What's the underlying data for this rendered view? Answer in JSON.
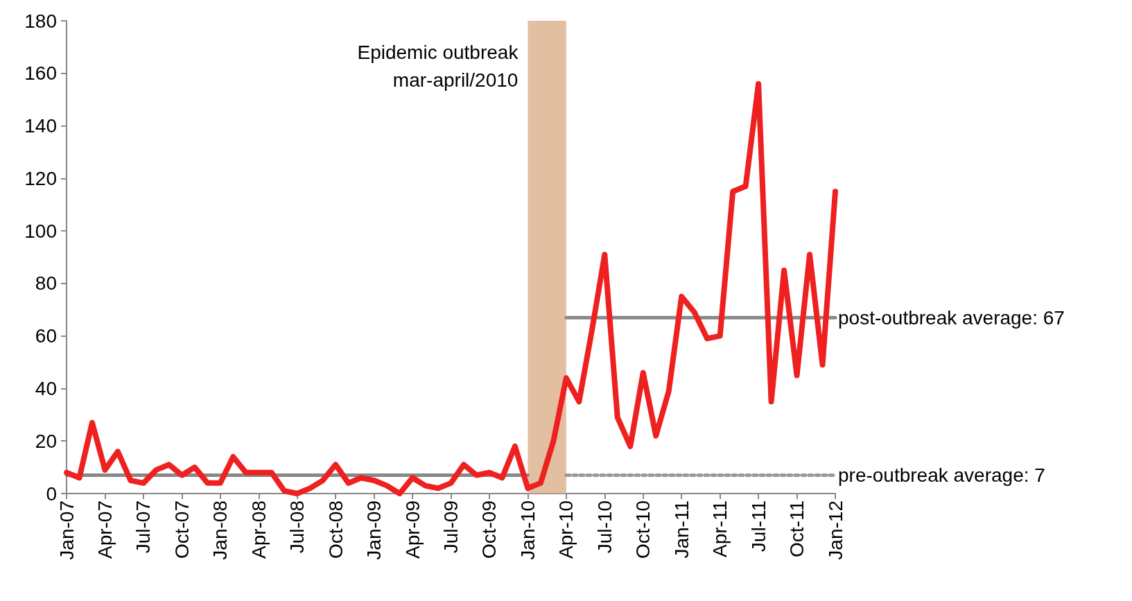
{
  "chart_data": {
    "type": "line",
    "categories": [
      "Jan-07",
      null,
      null,
      "Apr-07",
      null,
      null,
      "Jul-07",
      null,
      null,
      "Oct-07",
      null,
      null,
      "Jan-08",
      null,
      null,
      "Apr-08",
      null,
      null,
      "Jul-08",
      null,
      null,
      "Oct-08",
      null,
      null,
      "Jan-09",
      null,
      null,
      "Apr-09",
      null,
      null,
      "Jul-09",
      null,
      null,
      "Oct-09",
      null,
      null,
      "Jan-10",
      null,
      null,
      "Apr-10",
      null,
      null,
      "Jul-10",
      null,
      null,
      "Oct-10",
      null,
      null,
      "Jan-11",
      null,
      null,
      "Apr-11",
      null,
      null,
      "Jul-11",
      null,
      null,
      "Oct-11",
      null,
      null,
      "Jan-12"
    ],
    "series": [
      {
        "color": "#ee2020",
        "values": [
          8,
          6,
          27,
          9,
          16,
          5,
          4,
          9,
          11,
          7,
          10,
          4,
          4,
          14,
          8,
          8,
          8,
          1,
          0,
          2,
          5,
          11,
          4,
          6,
          5,
          3,
          0,
          6,
          3,
          2,
          4,
          11,
          7,
          8,
          6,
          18,
          2,
          4,
          20,
          44,
          35,
          62,
          91,
          29,
          18,
          46,
          22,
          39,
          75,
          69,
          59,
          60,
          115,
          117,
          156,
          35,
          85,
          45,
          91,
          49,
          115
        ]
      },
      {
        "type": "line",
        "color": "#888888",
        "x": [
          "Jan-07",
          "Jan-10"
        ],
        "values": [
          7,
          7
        ],
        "line_style": "solid"
      },
      {
        "type": "line",
        "color": "#999999",
        "x": [
          "Apr-10",
          "Jan-12"
        ],
        "values": [
          7,
          7
        ],
        "line_style": "dotted"
      },
      {
        "type": "line",
        "color": "#888888",
        "x": [
          "Apr-10",
          "Jan-12"
        ],
        "values": [
          67,
          67
        ],
        "line_style": "solid"
      }
    ],
    "ylim": [
      0,
      180
    ],
    "yticks": [
      0,
      20,
      40,
      60,
      80,
      100,
      120,
      140,
      160,
      180
    ],
    "grid": false,
    "marker": "none",
    "line_style": "solid",
    "bands": [
      {
        "axis": "x",
        "from": "Jan-10",
        "to": "Apr-10",
        "label": "Epidemic outbreak\nmar-april/2010",
        "color": "#deb491"
      }
    ],
    "annotations": [
      {
        "text": "post-outbreak average: 67",
        "x": "Jan-12",
        "y": 67
      },
      {
        "text": "pre-outbreak average: 7",
        "x": "Jan-12",
        "y": 7
      }
    ]
  }
}
